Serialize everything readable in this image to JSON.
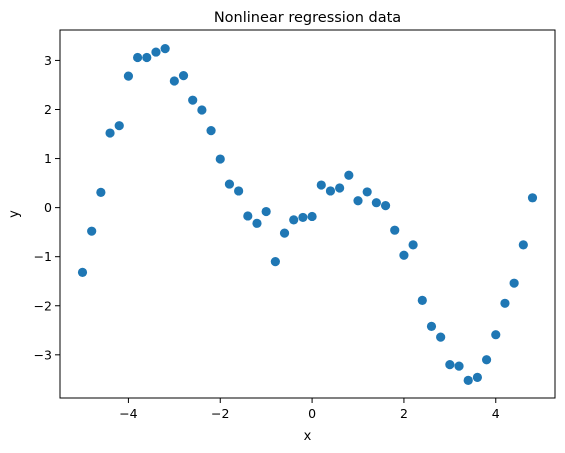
{
  "chart_data": {
    "type": "scatter",
    "title": "Nonlinear regression data",
    "xlabel": "x",
    "ylabel": "y",
    "xlim": [
      -5.49,
      5.29
    ],
    "ylim": [
      -3.88,
      3.62
    ],
    "xticks": [
      {
        "value": -4,
        "label": "−4"
      },
      {
        "value": -2,
        "label": "−2"
      },
      {
        "value": 0,
        "label": "0"
      },
      {
        "value": 2,
        "label": "2"
      },
      {
        "value": 4,
        "label": "4"
      }
    ],
    "yticks": [
      {
        "value": -3,
        "label": "−3"
      },
      {
        "value": -2,
        "label": "−2"
      },
      {
        "value": -1,
        "label": "−1"
      },
      {
        "value": 0,
        "label": "0"
      },
      {
        "value": 1,
        "label": "1"
      },
      {
        "value": 2,
        "label": "2"
      },
      {
        "value": 3,
        "label": "3"
      }
    ],
    "grid": false,
    "marker_color": "#1f77b4",
    "points": [
      {
        "x": -5.0,
        "y": -1.32
      },
      {
        "x": -4.8,
        "y": -0.48
      },
      {
        "x": -4.6,
        "y": 0.31
      },
      {
        "x": -4.4,
        "y": 1.52
      },
      {
        "x": -4.2,
        "y": 1.67
      },
      {
        "x": -4.0,
        "y": 2.68
      },
      {
        "x": -3.8,
        "y": 3.06
      },
      {
        "x": -3.6,
        "y": 3.06
      },
      {
        "x": -3.4,
        "y": 3.17
      },
      {
        "x": -3.2,
        "y": 3.24
      },
      {
        "x": -3.0,
        "y": 2.58
      },
      {
        "x": -2.8,
        "y": 2.69
      },
      {
        "x": -2.6,
        "y": 2.19
      },
      {
        "x": -2.4,
        "y": 1.99
      },
      {
        "x": -2.2,
        "y": 1.57
      },
      {
        "x": -2.0,
        "y": 0.99
      },
      {
        "x": -1.8,
        "y": 0.48
      },
      {
        "x": -1.6,
        "y": 0.34
      },
      {
        "x": -1.4,
        "y": -0.17
      },
      {
        "x": -1.2,
        "y": -0.32
      },
      {
        "x": -1.0,
        "y": -0.08
      },
      {
        "x": -0.8,
        "y": -1.1
      },
      {
        "x": -0.6,
        "y": -0.52
      },
      {
        "x": -0.4,
        "y": -0.25
      },
      {
        "x": -0.2,
        "y": -0.2
      },
      {
        "x": 0.0,
        "y": -0.18
      },
      {
        "x": 0.2,
        "y": 0.46
      },
      {
        "x": 0.4,
        "y": 0.34
      },
      {
        "x": 0.6,
        "y": 0.4
      },
      {
        "x": 0.8,
        "y": 0.66
      },
      {
        "x": 1.0,
        "y": 0.14
      },
      {
        "x": 1.2,
        "y": 0.32
      },
      {
        "x": 1.4,
        "y": 0.1
      },
      {
        "x": 1.6,
        "y": 0.04
      },
      {
        "x": 1.8,
        "y": -0.46
      },
      {
        "x": 2.0,
        "y": -0.97
      },
      {
        "x": 2.2,
        "y": -0.76
      },
      {
        "x": 2.4,
        "y": -1.89
      },
      {
        "x": 2.6,
        "y": -2.42
      },
      {
        "x": 2.8,
        "y": -2.64
      },
      {
        "x": 3.0,
        "y": -3.2
      },
      {
        "x": 3.2,
        "y": -3.23
      },
      {
        "x": 3.4,
        "y": -3.52
      },
      {
        "x": 3.6,
        "y": -3.46
      },
      {
        "x": 3.8,
        "y": -3.1
      },
      {
        "x": 4.0,
        "y": -2.59
      },
      {
        "x": 4.2,
        "y": -1.95
      },
      {
        "x": 4.4,
        "y": -1.54
      },
      {
        "x": 4.6,
        "y": -0.76
      },
      {
        "x": 4.8,
        "y": 0.2
      }
    ]
  }
}
